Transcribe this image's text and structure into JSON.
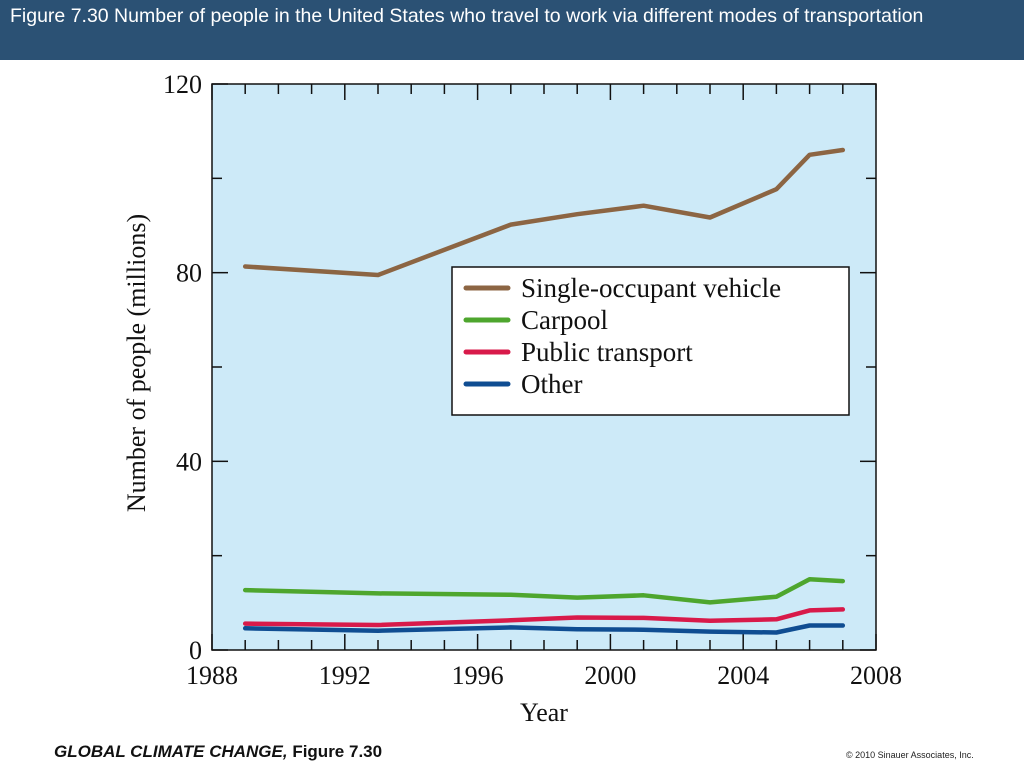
{
  "slide": {
    "title": "Figure 7.30  Number of people in the United States who travel to work via different modes of transportation",
    "footer_book": "GLOBAL CLIMATE CHANGE,",
    "footer_figure": " Figure 7.30",
    "copyright": "© 2010 Sinauer Associates, Inc."
  },
  "colors": {
    "title_bar": "#2b5174",
    "plot_background": "#cdeaf8",
    "single_occupant_vehicle": "#8c6543",
    "carpool": "#4ea62e",
    "public_transport": "#d81a4a",
    "other": "#0f4d92"
  },
  "chart_data": {
    "type": "line",
    "title": "",
    "xlabel": "Year",
    "ylabel": "Number of people (millions)",
    "xlim": [
      1988,
      2008
    ],
    "ylim": [
      0,
      120
    ],
    "xticks": [
      1988,
      1992,
      1996,
      2000,
      2004,
      2008
    ],
    "yticks": [
      0,
      40,
      80,
      120
    ],
    "legend_position": "center-right",
    "grid": false,
    "series": [
      {
        "name": "Single-occupant vehicle",
        "color": "#8c6543",
        "points": [
          [
            1989,
            81.3
          ],
          [
            1993,
            79.5
          ],
          [
            1997,
            90.2
          ],
          [
            1999,
            92.4
          ],
          [
            2001,
            94.2
          ],
          [
            2003,
            91.7
          ],
          [
            2005,
            97.7
          ],
          [
            2006,
            105.0
          ],
          [
            2007,
            106.0
          ]
        ]
      },
      {
        "name": "Carpool",
        "color": "#4ea62e",
        "points": [
          [
            1989,
            12.7
          ],
          [
            1993,
            12.0
          ],
          [
            1997,
            11.7
          ],
          [
            1999,
            11.1
          ],
          [
            2001,
            11.6
          ],
          [
            2003,
            10.1
          ],
          [
            2005,
            11.3
          ],
          [
            2006,
            15.0
          ],
          [
            2007,
            14.6
          ]
        ]
      },
      {
        "name": "Public transport",
        "color": "#d81a4a",
        "points": [
          [
            1989,
            5.6
          ],
          [
            1993,
            5.3
          ],
          [
            1997,
            6.3
          ],
          [
            1999,
            6.9
          ],
          [
            2001,
            6.8
          ],
          [
            2003,
            6.2
          ],
          [
            2005,
            6.5
          ],
          [
            2006,
            8.4
          ],
          [
            2007,
            8.6
          ]
        ]
      },
      {
        "name": "Other",
        "color": "#0f4d92",
        "points": [
          [
            1989,
            4.6
          ],
          [
            1993,
            4.1
          ],
          [
            1997,
            4.8
          ],
          [
            1999,
            4.4
          ],
          [
            2001,
            4.3
          ],
          [
            2003,
            3.9
          ],
          [
            2005,
            3.7
          ],
          [
            2006,
            5.2
          ],
          [
            2007,
            5.2
          ]
        ]
      }
    ]
  }
}
